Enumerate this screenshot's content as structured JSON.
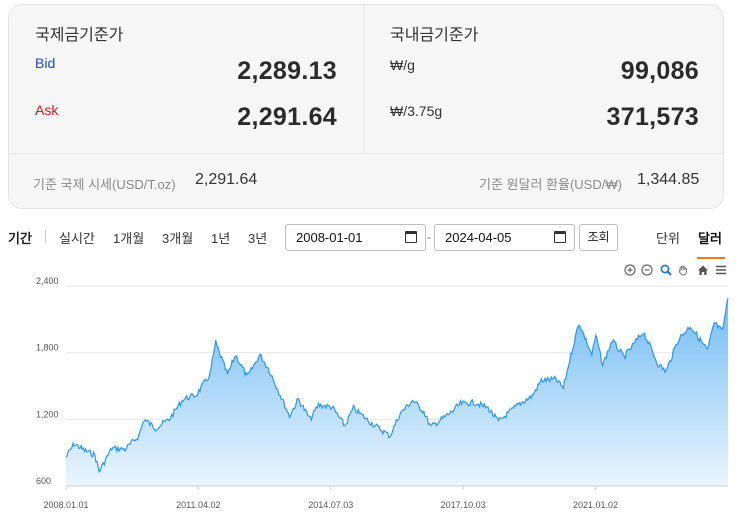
{
  "international": {
    "title": "국제금기준가",
    "bid_label": "Bid",
    "bid_value": "2,289.13",
    "ask_label": "Ask",
    "ask_value": "2,291.64"
  },
  "domestic": {
    "title": "국내금기준가",
    "unit1_label": "₩/g",
    "unit1_value": "99,086",
    "unit2_label": "₩/3.75g",
    "unit2_value": "371,573"
  },
  "footer": {
    "intl_label": "기준 국제 시세(USD/T.oz)",
    "intl_value": "2,291.64",
    "fx_label": "기준 원달러 환율(USD/₩)",
    "fx_value": "1,344.85"
  },
  "period": {
    "title": "기간",
    "options": [
      "실시간",
      "1개월",
      "3개월",
      "1년",
      "3년"
    ],
    "start_date": "2008-01-01",
    "end_date": "2024-04-05",
    "date_separator": "-",
    "search_label": "조회",
    "unit_title": "단위",
    "unit_selected": "달러"
  },
  "toolbar_icons": [
    "zoom-in-icon",
    "zoom-out-icon",
    "magnify-icon",
    "pan-hand-icon",
    "home-icon",
    "menu-icon"
  ],
  "colors": {
    "accent": "#f07d1a",
    "bid": "#2145c9",
    "ask": "#e0161b",
    "line": "#2e97e6",
    "area": "#7fc3f5"
  },
  "chart_data": {
    "type": "area",
    "x_tick_labels": [
      "2008.01.01",
      "2011.04.02",
      "2014.07.03",
      "2017.10.03",
      "2021.01.02"
    ],
    "y_tick_labels": [
      "600",
      "1,200",
      "1,800",
      "2,400"
    ],
    "ylim": [
      600,
      2400
    ],
    "xlim": [
      "2008.01.01",
      "2024.04.05"
    ],
    "grid": true,
    "legend": "none",
    "series": [
      {
        "x": [
          "2008.01.01",
          "2008.03.15",
          "2008.06.15",
          "2008.09.15",
          "2008.10.25",
          "2009.02.15",
          "2009.06.15",
          "2009.10.15",
          "2009.12.01",
          "2010.03.15",
          "2010.07.15",
          "2010.11.15",
          "2011.03.15",
          "2011.07.15",
          "2011.09.05",
          "2011.12.20",
          "2012.03.01",
          "2012.06.15",
          "2012.10.05",
          "2012.12.20",
          "2013.04.15",
          "2013.06.28",
          "2013.09.15",
          "2013.12.31",
          "2014.03.15",
          "2014.07.15",
          "2014.11.07",
          "2015.01.22",
          "2015.06.15",
          "2015.12.17",
          "2016.03.15",
          "2016.07.06",
          "2016.10.15",
          "2016.12.15",
          "2017.06.15",
          "2017.09.08",
          "2018.01.25",
          "2018.05.15",
          "2018.08.16",
          "2019.02.20",
          "2019.06.15",
          "2019.09.04",
          "2020.01.15",
          "2020.03.19",
          "2020.05.15",
          "2020.08.07",
          "2020.11.30",
          "2021.01.06",
          "2021.03.08",
          "2021.06.01",
          "2021.09.15",
          "2022.03.08",
          "2022.07.15",
          "2022.09.28",
          "2023.01.15",
          "2023.05.04",
          "2023.10.05",
          "2023.12.04",
          "2024.02.14",
          "2024.04.05"
        ],
        "y": [
          860,
          980,
          920,
          880,
          730,
          940,
          930,
          1050,
          1200,
          1120,
          1200,
          1380,
          1420,
          1600,
          1890,
          1600,
          1780,
          1580,
          1780,
          1660,
          1400,
          1230,
          1380,
          1200,
          1330,
          1310,
          1140,
          1300,
          1180,
          1050,
          1250,
          1370,
          1270,
          1130,
          1260,
          1340,
          1350,
          1300,
          1180,
          1340,
          1410,
          1550,
          1560,
          1480,
          1730,
          2070,
          1780,
          1950,
          1690,
          1910,
          1760,
          1990,
          1700,
          1630,
          1920,
          2040,
          1820,
          2070,
          1990,
          2290
        ]
      }
    ]
  }
}
